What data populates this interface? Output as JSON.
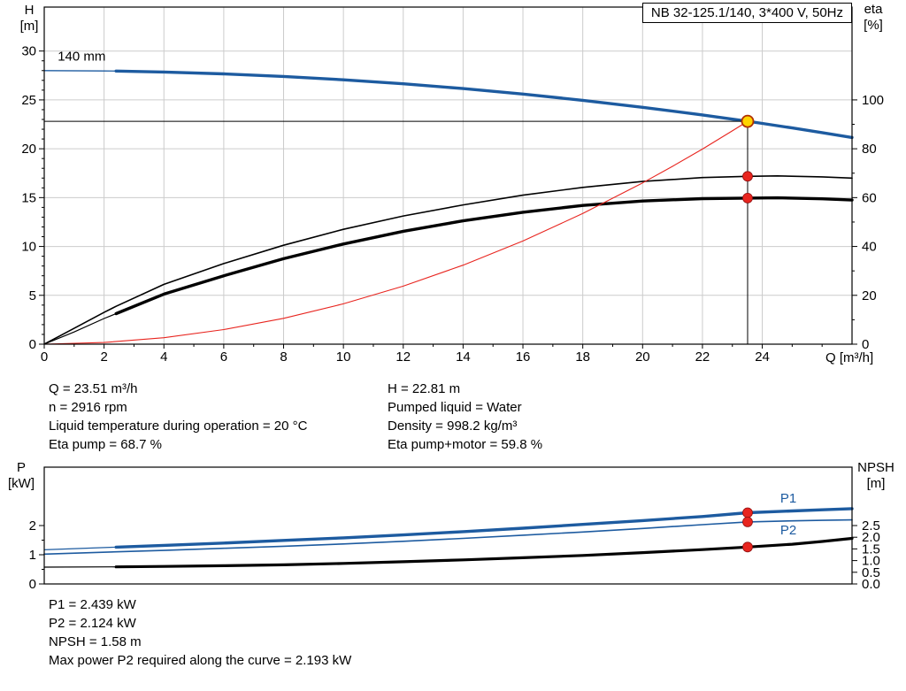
{
  "axis_corner_labels": {
    "top_left": [
      "H",
      "[m]"
    ],
    "top_right": [
      "eta",
      "[%]"
    ],
    "bottom_left": [
      "P",
      "[kW]"
    ],
    "bottom_right": [
      "NPSH",
      "[m]"
    ]
  },
  "results_top": {
    "left": [
      "Q = 23.51 m³/h",
      "n = 2916 rpm",
      "Liquid temperature during operation = 20 °C",
      "Eta pump = 68.7 %"
    ],
    "right": [
      "H = 22.81 m",
      "Pumped liquid = Water",
      "Density = 998.2 kg/m³",
      "Eta pump+motor = 59.8 %"
    ]
  },
  "results_bottom": [
    "P1 = 2.439 kW",
    "P2 = 2.124 kW",
    "NPSH = 1.58 m",
    "Max power P2 required along the curve = 2.193 kW"
  ],
  "colors": {
    "curve_blue": "#1d5ba0",
    "curve_black": "#000000",
    "curve_red": "#e8251f",
    "grid": "#cccccc",
    "axis": "#000000",
    "duty_fill": "#ffd400",
    "duty_stroke": "#b03000",
    "dot_red": "#e8251f",
    "dot_red_edge": "#901010",
    "annotation_blue": "#1d5ba0",
    "text": "#000000"
  },
  "chart_data": [
    {
      "type": "line",
      "title": "NB 32-125.1/140, 3*400 V, 50Hz",
      "xlabel": "Q [m³/h]",
      "ylabel": "H [m]",
      "y2label": "eta [%]",
      "xlim": [
        0,
        27
      ],
      "ylim": [
        0,
        34.5
      ],
      "y2lim": [
        0,
        138
      ],
      "xticks": [
        0,
        2,
        4,
        6,
        8,
        10,
        12,
        14,
        16,
        18,
        20,
        22,
        24
      ],
      "xminor": 1,
      "yticks": [
        0,
        5,
        10,
        15,
        20,
        25,
        30
      ],
      "yminor": 1,
      "y2ticks": [
        0,
        20,
        40,
        60,
        80,
        100
      ],
      "y2labels": [
        "0",
        "20",
        "40",
        "60",
        "80",
        "100"
      ],
      "y2minor": 10,
      "grid": true,
      "series": [
        {
          "name": "pump-curve-140mm",
          "label": "140 mm",
          "axis": "y",
          "color_key": "curve_blue",
          "width": 3.4,
          "thin_until": 2.4,
          "thin_width": 1.3,
          "points": [
            [
              0,
              28
            ],
            [
              2,
              27.96
            ],
            [
              2.4,
              27.95
            ],
            [
              4,
              27.85
            ],
            [
              6,
              27.66
            ],
            [
              8,
              27.4
            ],
            [
              10,
              27.06
            ],
            [
              12,
              26.65
            ],
            [
              14,
              26.16
            ],
            [
              16,
              25.6
            ],
            [
              18,
              24.96
            ],
            [
              20,
              24.24
            ],
            [
              22,
              23.46
            ],
            [
              23.51,
              22.81
            ],
            [
              24,
              22.59
            ],
            [
              25,
              22.13
            ],
            [
              26,
              21.65
            ],
            [
              27,
              21.15
            ]
          ]
        },
        {
          "name": "eta-pump",
          "axis": "y2",
          "color_key": "curve_black",
          "width": 1.6,
          "points": [
            [
              0,
              0
            ],
            [
              1,
              6.5
            ],
            [
              2,
              13
            ],
            [
              2.4,
              15.5
            ],
            [
              4,
              24.5
            ],
            [
              6,
              33
            ],
            [
              8,
              40.5
            ],
            [
              10,
              47
            ],
            [
              12,
              52.5
            ],
            [
              14,
              57
            ],
            [
              16,
              61
            ],
            [
              18,
              64.2
            ],
            [
              20,
              66.6
            ],
            [
              22,
              68.2
            ],
            [
              23.51,
              68.7
            ],
            [
              24.5,
              68.9
            ],
            [
              26,
              68.5
            ],
            [
              27,
              68
            ]
          ]
        },
        {
          "name": "eta-pump-motor",
          "axis": "y2",
          "color_key": "curve_black",
          "width": 3.4,
          "thin_until": 2.4,
          "thin_width": 1.2,
          "points": [
            [
              0,
              0
            ],
            [
              1,
              5
            ],
            [
              2,
              10.5
            ],
            [
              2.4,
              12.5
            ],
            [
              4,
              20.5
            ],
            [
              6,
              28
            ],
            [
              8,
              35
            ],
            [
              10,
              41
            ],
            [
              12,
              46.2
            ],
            [
              14,
              50.5
            ],
            [
              16,
              54
            ],
            [
              18,
              56.8
            ],
            [
              20,
              58.6
            ],
            [
              22,
              59.6
            ],
            [
              23.51,
              59.8
            ],
            [
              24.5,
              59.9
            ],
            [
              26,
              59.5
            ],
            [
              27,
              59
            ]
          ]
        },
        {
          "name": "system-curve",
          "axis": "y",
          "color_key": "curve_red",
          "width": 1.1,
          "points": [
            [
              0,
              0
            ],
            [
              2,
              0.17
            ],
            [
              4,
              0.66
            ],
            [
              6,
              1.49
            ],
            [
              8,
              2.64
            ],
            [
              10,
              4.13
            ],
            [
              12,
              5.94
            ],
            [
              14,
              8.09
            ],
            [
              16,
              10.56
            ],
            [
              18,
              13.37
            ],
            [
              20,
              16.51
            ],
            [
              21,
              18.2
            ],
            [
              22,
              19.97
            ],
            [
              23,
              21.83
            ],
            [
              23.51,
              22.81
            ]
          ]
        }
      ],
      "ref_lines": [
        {
          "name": "duty-head-line",
          "type": "h",
          "y": 22.81,
          "x1": 0,
          "x2": 23.51
        },
        {
          "name": "duty-flow-line",
          "type": "v",
          "x": 23.51,
          "y1": 0,
          "y2": 22.81
        }
      ],
      "markers": [
        {
          "name": "duty-point",
          "x": 23.51,
          "y": 22.81,
          "axis": "y",
          "style": "duty"
        },
        {
          "name": "eta-pump-marker",
          "x": 23.51,
          "y": 68.7,
          "axis": "y2",
          "style": "red"
        },
        {
          "name": "eta-pump-motor-marker",
          "x": 23.51,
          "y": 59.8,
          "axis": "y2",
          "style": "red"
        }
      ],
      "annotations": [
        {
          "name": "impeller-size-label",
          "text": "140 mm",
          "x": 0.45,
          "y": 29.0,
          "axis": "y",
          "color_key": "text",
          "anchor": "start"
        }
      ]
    },
    {
      "type": "line",
      "title": "",
      "xlabel": "",
      "ylabel": "P [kW]",
      "y2label": "NPSH [m]",
      "xlim": [
        0,
        27
      ],
      "ylim": [
        0,
        4
      ],
      "y2lim": [
        0,
        5
      ],
      "xticks": [],
      "yticks": [
        0,
        1,
        2
      ],
      "yminor": 0.5,
      "y2ticks": [
        0,
        0.5,
        1,
        1.5,
        2,
        2.5
      ],
      "y2labels": [
        "0.0",
        "0.5",
        "1.0",
        "1.5",
        "2.0",
        "2.5"
      ],
      "grid": false,
      "series": [
        {
          "name": "p1-curve",
          "label": "P1",
          "axis": "y",
          "color_key": "curve_blue",
          "width": 3.4,
          "thin_until": 2.4,
          "thin_width": 1.2,
          "points": [
            [
              0,
              1.17
            ],
            [
              2.4,
              1.26
            ],
            [
              4,
              1.32
            ],
            [
              6,
              1.4
            ],
            [
              8,
              1.49
            ],
            [
              10,
              1.58
            ],
            [
              12,
              1.68
            ],
            [
              14,
              1.79
            ],
            [
              16,
              1.91
            ],
            [
              18,
              2.04
            ],
            [
              20,
              2.17
            ],
            [
              22,
              2.31
            ],
            [
              23.51,
              2.439
            ],
            [
              25,
              2.5
            ],
            [
              26,
              2.54
            ],
            [
              27,
              2.58
            ]
          ]
        },
        {
          "name": "p2-curve",
          "label": "P2",
          "axis": "y",
          "color_key": "curve_blue",
          "width": 1.6,
          "points": [
            [
              0,
              1.02
            ],
            [
              2.4,
              1.1
            ],
            [
              4,
              1.15
            ],
            [
              6,
              1.22
            ],
            [
              8,
              1.29
            ],
            [
              10,
              1.37
            ],
            [
              12,
              1.46
            ],
            [
              14,
              1.56
            ],
            [
              16,
              1.67
            ],
            [
              18,
              1.78
            ],
            [
              20,
              1.9
            ],
            [
              22,
              2.03
            ],
            [
              23.51,
              2.124
            ],
            [
              25,
              2.16
            ],
            [
              26,
              2.18
            ],
            [
              27,
              2.193
            ]
          ]
        },
        {
          "name": "npsh-curve",
          "label": "NPSH",
          "axis": "y2",
          "color_key": "curve_black",
          "width": 3.2,
          "thin_until": 2.4,
          "thin_width": 1.2,
          "points": [
            [
              0,
              0.72
            ],
            [
              2.4,
              0.73
            ],
            [
              4,
              0.75
            ],
            [
              6,
              0.78
            ],
            [
              8,
              0.82
            ],
            [
              10,
              0.88
            ],
            [
              12,
              0.95
            ],
            [
              14,
              1.03
            ],
            [
              16,
              1.12
            ],
            [
              18,
              1.22
            ],
            [
              20,
              1.34
            ],
            [
              22,
              1.47
            ],
            [
              23.51,
              1.58
            ],
            [
              25,
              1.7
            ],
            [
              26,
              1.82
            ],
            [
              27,
              1.95
            ]
          ]
        }
      ],
      "ref_lines": [],
      "markers": [
        {
          "name": "p1-marker",
          "x": 23.51,
          "y": 2.439,
          "axis": "y",
          "style": "red"
        },
        {
          "name": "p2-marker",
          "x": 23.51,
          "y": 2.124,
          "axis": "y",
          "style": "red"
        },
        {
          "name": "npsh-marker",
          "x": 23.51,
          "y": 1.58,
          "axis": "y2",
          "style": "red"
        }
      ],
      "annotations": [
        {
          "name": "p1-curve-label",
          "text": "P1",
          "x": 24.6,
          "y": 2.79,
          "axis": "y",
          "color_key": "annotation_blue",
          "anchor": "start"
        },
        {
          "name": "p2-curve-label",
          "text": "P2",
          "x": 24.6,
          "y": 1.7,
          "axis": "y",
          "color_key": "annotation_blue",
          "anchor": "start"
        }
      ]
    }
  ]
}
